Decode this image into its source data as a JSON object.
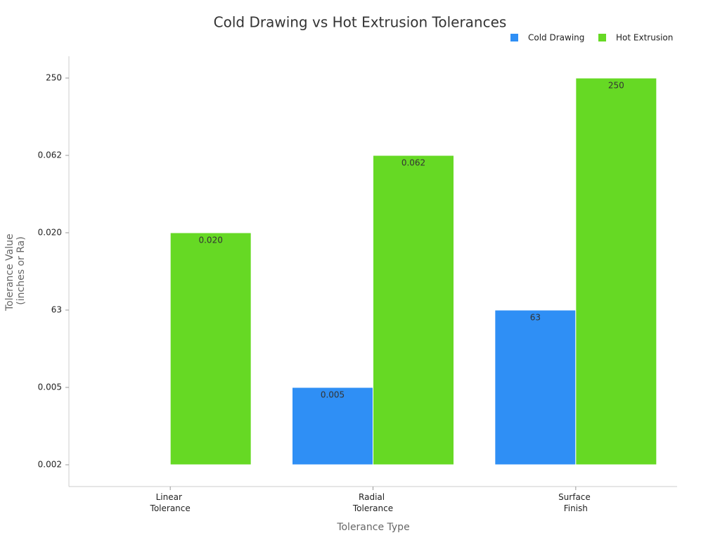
{
  "chart_data": {
    "type": "bar",
    "title": "Cold Drawing vs Hot Extrusion Tolerances",
    "x_label": "Tolerance Type",
    "y_label": "Tolerance Value (inches or Ra)",
    "categories": [
      "Linear Tolerance",
      "Radial Tolerance",
      "Surface Finish"
    ],
    "y_categories": [
      "0.002",
      "0.005",
      "63",
      "0.020",
      "0.062",
      "250"
    ],
    "series": [
      {
        "name": "Cold Drawing",
        "color": "#2f8ff5",
        "values": [
          null,
          "0.005",
          "63"
        ]
      },
      {
        "name": "Hot Extrusion",
        "color": "#66d924",
        "values": [
          "0.020",
          "0.062",
          "250"
        ]
      }
    ],
    "legend": "top-right"
  }
}
